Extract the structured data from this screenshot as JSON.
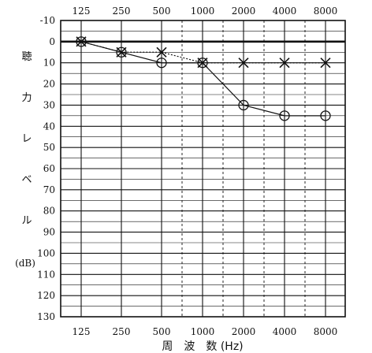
{
  "chart_data": {
    "type": "line",
    "x_categories": [
      "125",
      "250",
      "500",
      "1000",
      "2000",
      "4000",
      "8000"
    ],
    "y_ticks": [
      "-10",
      "0",
      "10",
      "20",
      "30",
      "40",
      "50",
      "60",
      "70",
      "80",
      "90",
      "100",
      "110",
      "120",
      "130"
    ],
    "ylim": [
      -10,
      130
    ],
    "y_inverted": true,
    "ylabel_chars": [
      "聴",
      "力",
      "レ",
      "ベ",
      "ル"
    ],
    "yunit": "(dB)",
    "xlabel": "周　波　数 (Hz)",
    "grid": true,
    "series": [
      {
        "marker": "circle",
        "line": "solid",
        "x": [
          "125",
          "250",
          "500",
          "1000",
          "2000",
          "4000",
          "8000"
        ],
        "values": [
          0,
          5,
          10,
          10,
          30,
          35,
          35
        ]
      },
      {
        "marker": "cross",
        "line": "dotted",
        "x": [
          "125",
          "250",
          "500",
          "1000",
          "2000",
          "4000",
          "8000"
        ],
        "values": [
          0,
          5,
          5,
          10,
          10,
          10,
          10
        ]
      }
    ]
  }
}
